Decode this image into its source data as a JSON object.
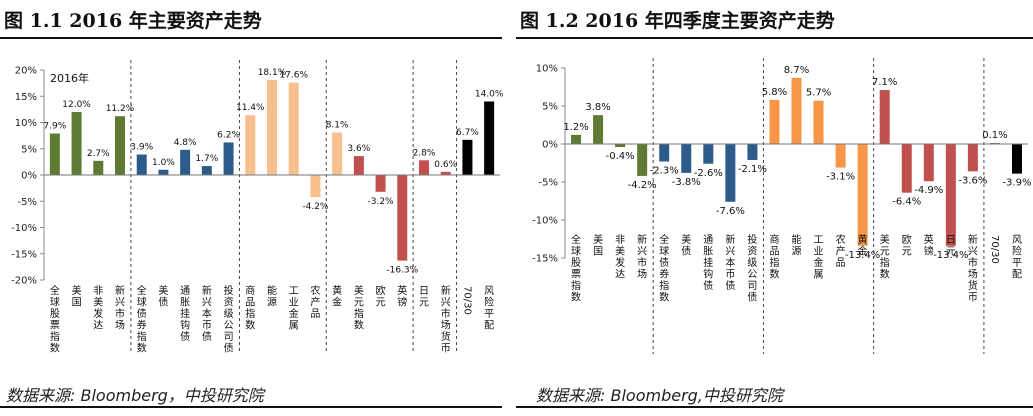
{
  "left": {
    "title": "图 1.1  2016 年主要资产走势",
    "source": "数据来源: Bloomberg，中投研究院"
  },
  "right": {
    "title": "图 1.2  2016 年四季度主要资产走势",
    "source": "数据来源: Bloomberg,中投研究院"
  },
  "colors": {
    "green": "#5f7a33",
    "blue": "#2e5c8a",
    "peach": "#f7c08f",
    "red": "#c0504d",
    "black": "#000000",
    "orange": "#f79646"
  },
  "chart_data": [
    {
      "type": "bar",
      "annotation": "2016年",
      "ylim": [
        -20,
        20
      ],
      "yticks": [
        -20,
        -15,
        -10,
        -5,
        0,
        5,
        10,
        15,
        20
      ],
      "ytick_labels": [
        "-20%",
        "-15%",
        "-10%",
        "-5%",
        "0%",
        "5%",
        "10%",
        "15%",
        "20%"
      ],
      "grid": false,
      "group_separators": [
        4,
        9,
        13,
        17,
        19
      ],
      "categories": [
        "全球股票指数",
        "美国",
        "非美发达",
        "新兴市场",
        "全球债券指数",
        "美债",
        "通胀挂钩债",
        "新兴本币债",
        "投资级公司债",
        "商品指数",
        "能源",
        "工业金属",
        "农产品",
        "黄金",
        "美元指数",
        "欧元",
        "英镑",
        "日元",
        "新兴市场货币",
        "70/30",
        "风险平配"
      ],
      "values": [
        7.9,
        12.0,
        2.7,
        11.2,
        3.9,
        1.0,
        4.8,
        1.7,
        6.2,
        11.4,
        18.1,
        17.6,
        -4.2,
        8.1,
        3.6,
        -3.2,
        -16.3,
        2.8,
        0.6,
        6.7,
        14.0
      ],
      "value_labels": [
        "7.9%",
        "12.0%",
        "2.7%",
        "11.2%",
        "3.9%",
        "1.0%",
        "4.8%",
        "1.7%",
        "6.2%",
        "11.4%",
        "18.1%",
        "17.6%",
        "-4.2%",
        "8.1%",
        "3.6%",
        "-3.2%",
        "-16.3%",
        "2.8%",
        "0.6%",
        "6.7%",
        "14.0%"
      ],
      "bar_colors": [
        "green",
        "green",
        "green",
        "green",
        "blue",
        "blue",
        "blue",
        "blue",
        "blue",
        "peach",
        "peach",
        "peach",
        "peach",
        "peach",
        "red",
        "red",
        "red",
        "red",
        "red",
        "black",
        "black"
      ]
    },
    {
      "type": "bar",
      "ylim": [
        -15,
        10
      ],
      "yticks": [
        -15,
        -10,
        -5,
        0,
        5,
        10
      ],
      "ytick_labels": [
        "-15%",
        "-10%",
        "-5%",
        "0%",
        "5%",
        "10%"
      ],
      "grid": false,
      "group_separators": [
        4,
        9,
        14,
        19
      ],
      "categories": [
        "全球股票指数",
        "美国",
        "非美发达",
        "新兴市场",
        "全球债券指数",
        "美债",
        "通胀挂钩债",
        "新兴本币债",
        "投资级公司债",
        "商品指数",
        "能源",
        "工业金属",
        "农产品",
        "黄金",
        "美元指数",
        "欧元",
        "英镑",
        "日元",
        "新兴市场货币",
        "70/30",
        "风险平配"
      ],
      "values": [
        1.2,
        3.8,
        -0.4,
        -4.2,
        -2.3,
        -3.8,
        -2.6,
        -7.6,
        -2.1,
        5.8,
        8.7,
        5.7,
        -3.1,
        -13.4,
        7.1,
        -6.4,
        -4.9,
        -13.4,
        -3.6,
        0.1,
        -3.9
      ],
      "value_labels": [
        "1.2%",
        "3.8%",
        "-0.4%",
        "-4.2%",
        "-2.3%",
        "-3.8%",
        "-2.6%",
        "-7.6%",
        "-2.1%",
        "5.8%",
        "8.7%",
        "5.7%",
        "-3.1%",
        "-13.4%",
        "7.1%",
        "-6.4%",
        "-4.9%",
        "-13.4%",
        "-3.6%",
        "0.1%",
        "-3.9%"
      ],
      "bar_colors": [
        "green",
        "green",
        "green",
        "green",
        "blue",
        "blue",
        "blue",
        "blue",
        "blue",
        "orange",
        "orange",
        "orange",
        "orange",
        "orange",
        "red",
        "red",
        "red",
        "red",
        "red",
        "black",
        "black"
      ]
    }
  ]
}
